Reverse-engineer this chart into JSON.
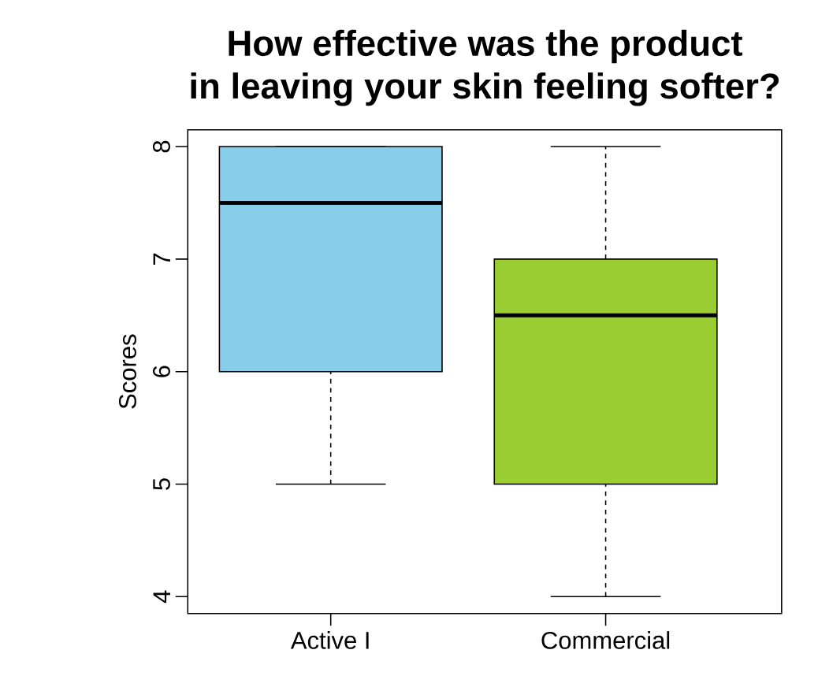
{
  "chart_data": {
    "type": "box",
    "title": "How effective was the product in leaving your skin feeling softer?",
    "ylabel": "Scores",
    "categories": [
      "Active I",
      "Commercial"
    ],
    "boxes": [
      {
        "low": 5,
        "q1": 6,
        "median": 7.5,
        "q3": 8,
        "high": 8
      },
      {
        "low": 4,
        "q1": 5,
        "median": 6.5,
        "q3": 7,
        "high": 8
      }
    ],
    "colors": [
      "#87ceeb",
      "#9acd32"
    ],
    "ylim": [
      3.85,
      8.15
    ],
    "yticks": [
      4,
      5,
      6,
      7,
      8
    ]
  }
}
